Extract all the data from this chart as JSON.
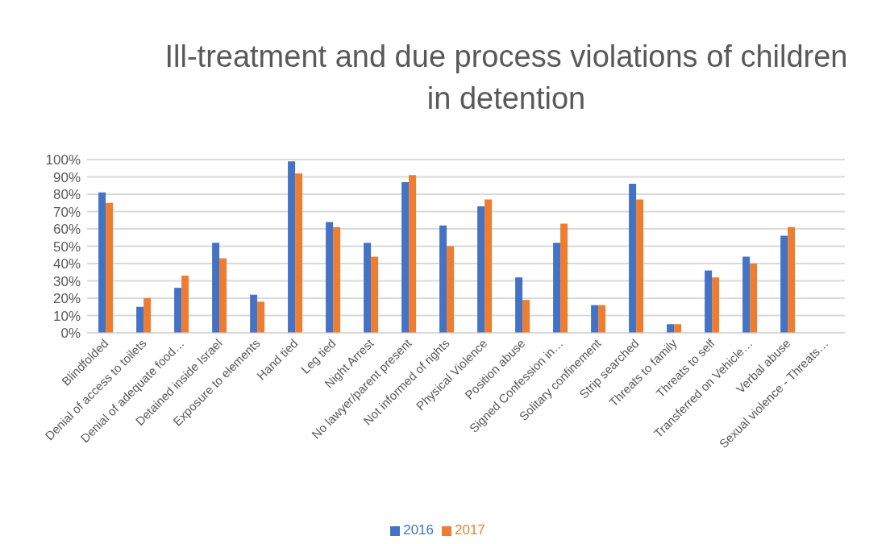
{
  "chart_data": {
    "type": "bar",
    "title": "Ill-treatment and due process violations of children in detention",
    "categories": [
      "Blindfolded",
      "Denial of access to toilets",
      "Denial of adequate food…",
      "Detained inside Israel",
      "Exposure to elements",
      "Hand tied",
      "Leg tied",
      "Night Arrest",
      "No lawyer/parent present",
      "Not informed of rights",
      "Physical Violence",
      "Position abuse",
      "Signed Confession in…",
      "Solitary confinement",
      "Strip searched",
      "Threats to family",
      "Threats to self",
      "Transferred on Vehicle…",
      "Verbal abuse",
      "Sexual violence - Threats…"
    ],
    "series": [
      {
        "name": "2016",
        "color": "#4472c4",
        "values": [
          81,
          15,
          26,
          52,
          22,
          99,
          64,
          52,
          87,
          62,
          73,
          32,
          52,
          16,
          86,
          5,
          36,
          44,
          56,
          0
        ]
      },
      {
        "name": "2017",
        "color": "#ed7d31",
        "values": [
          75,
          20,
          33,
          43,
          18,
          92,
          61,
          44,
          91,
          50,
          77,
          19,
          63,
          16,
          77,
          5,
          32,
          40,
          61,
          0
        ]
      }
    ],
    "ylim": [
      0,
      100
    ],
    "yticks": [
      {
        "value": 0,
        "label": "0%"
      },
      {
        "value": 10,
        "label": "10%"
      },
      {
        "value": 20,
        "label": "20%"
      },
      {
        "value": 30,
        "label": "30%"
      },
      {
        "value": 40,
        "label": "40%"
      },
      {
        "value": 50,
        "label": "50%"
      },
      {
        "value": 60,
        "label": "60%"
      },
      {
        "value": 70,
        "label": "70%"
      },
      {
        "value": 80,
        "label": "80%"
      },
      {
        "value": 90,
        "label": "90%"
      },
      {
        "value": 100,
        "label": "100%"
      }
    ],
    "grid": "y",
    "legend": "bottom"
  }
}
